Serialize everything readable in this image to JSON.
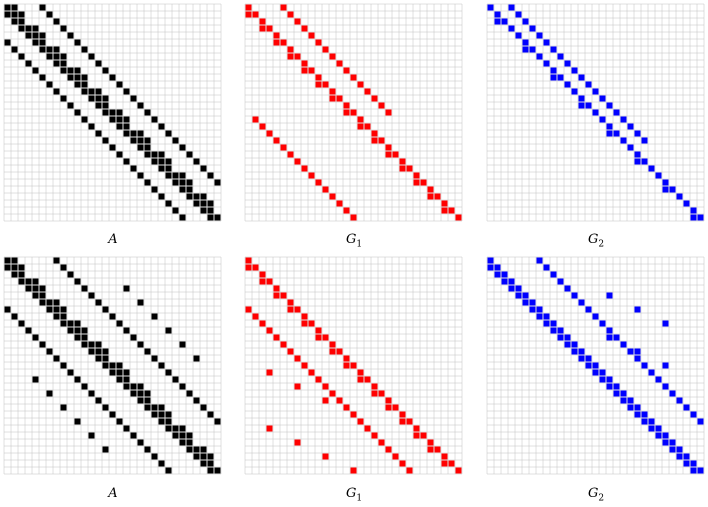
{
  "grid_size": 31,
  "colors": {
    "A": "#000000",
    "G1": "#ff0000",
    "G2": "#0000ff",
    "grid": "#c0c0c0"
  },
  "panels": [
    {
      "id": "top-A",
      "label": "A",
      "sub": "",
      "color": "#000000"
    },
    {
      "id": "top-G1",
      "label": "G",
      "sub": "1",
      "color": "#ff0000"
    },
    {
      "id": "top-G2",
      "label": "G",
      "sub": "2",
      "color": "#0000ff"
    },
    {
      "id": "bottom-A",
      "label": "A",
      "sub": "",
      "color": "#000000"
    },
    {
      "id": "bottom-G1",
      "label": "G",
      "sub": "1",
      "color": "#ff0000"
    },
    {
      "id": "bottom-G2",
      "label": "G",
      "sub": "2",
      "color": "#0000ff"
    }
  ]
}
